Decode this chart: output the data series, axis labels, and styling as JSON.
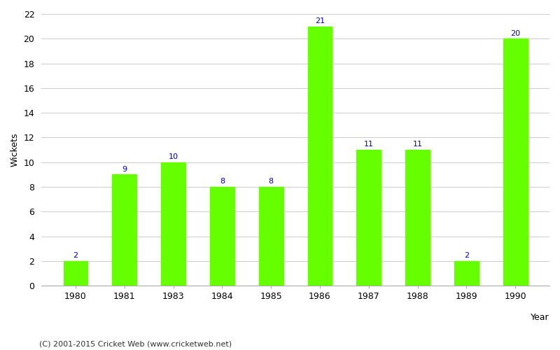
{
  "years": [
    "1980",
    "1981",
    "1983",
    "1984",
    "1985",
    "1986",
    "1987",
    "1988",
    "1989",
    "1990"
  ],
  "wickets": [
    2,
    9,
    10,
    8,
    8,
    21,
    11,
    11,
    2,
    20
  ],
  "bar_color": "#66ff00",
  "label_color": "#0000cc",
  "xlabel": "Year",
  "ylabel": "Wickets",
  "ylim": [
    0,
    22
  ],
  "yticks": [
    0,
    2,
    4,
    6,
    8,
    10,
    12,
    14,
    16,
    18,
    20,
    22
  ],
  "footnote": "(C) 2001-2015 Cricket Web (www.cricketweb.net)",
  "background_color": "#ffffff",
  "grid_color": "#cccccc",
  "label_fontsize": 8,
  "axis_fontsize": 9,
  "footnote_fontsize": 8,
  "bar_width": 0.5
}
